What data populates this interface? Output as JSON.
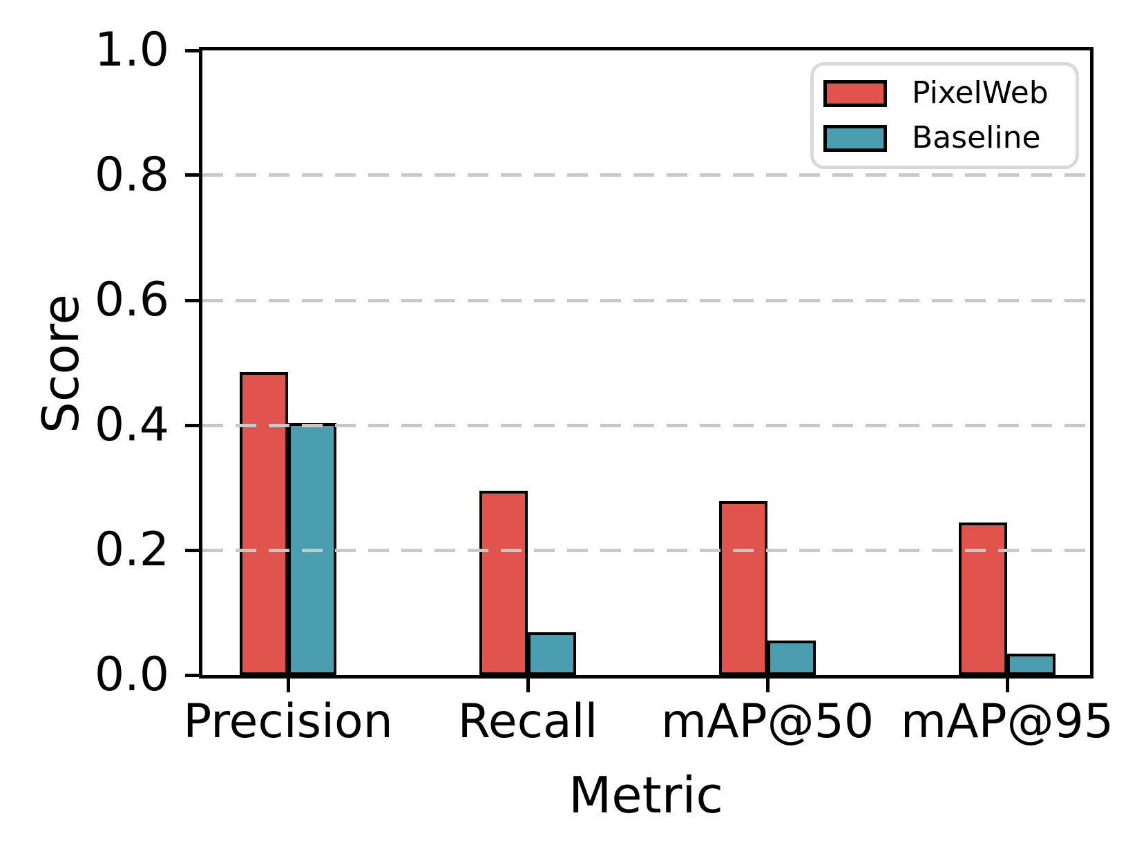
{
  "chart_data": {
    "type": "bar",
    "title": "",
    "xlabel": "Metric",
    "ylabel": "Score",
    "categories": [
      "Precision",
      "Recall",
      "mAP@50",
      "mAP@95"
    ],
    "series": [
      {
        "name": "PixelWeb",
        "color": "#e0544d",
        "values": [
          0.485,
          0.295,
          0.278,
          0.244
        ]
      },
      {
        "name": "Baseline",
        "color": "#4a9eaf",
        "values": [
          0.403,
          0.068,
          0.055,
          0.034
        ]
      }
    ],
    "ylim": [
      0.0,
      1.0
    ],
    "yticks": [
      0.0,
      0.2,
      0.4,
      0.6,
      0.8,
      1.0
    ],
    "ytick_labels": [
      "0.0",
      "0.2",
      "0.4",
      "0.6",
      "0.8",
      "1.0"
    ],
    "grid": "horizontal-dashed",
    "grid_color": "#c8c8c8",
    "bar_edge_color": "#000000",
    "legend_position": "upper-right",
    "legend_border_color": "#d9d9d9"
  }
}
